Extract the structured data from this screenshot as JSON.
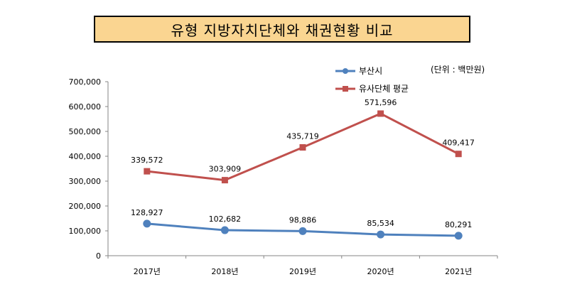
{
  "chart_data": {
    "type": "line",
    "title": "유형 지방자치단체와 채권현황 비교",
    "unit_note": "(단위 : 백만원)",
    "categories": [
      "2017년",
      "2018년",
      "2019년",
      "2020년",
      "2021년"
    ],
    "ylim": [
      0,
      700000
    ],
    "yticks": [
      "0",
      "100,000",
      "200,000",
      "300,000",
      "400,000",
      "500,000",
      "600,000",
      "700,000"
    ],
    "ytick_values": [
      0,
      100000,
      200000,
      300000,
      400000,
      500000,
      600000,
      700000
    ],
    "grid": false,
    "legend_position": "top-right",
    "series": [
      {
        "name": "부산시",
        "values": [
          128927,
          102682,
          98886,
          85534,
          80291
        ],
        "labels": [
          "128,927",
          "102,682",
          "98,886",
          "85,534",
          "80,291"
        ],
        "color": "#4f81bd",
        "marker": "circle"
      },
      {
        "name": "유사단체 평균",
        "values": [
          339572,
          303909,
          435719,
          571596,
          409417
        ],
        "labels": [
          "339,572",
          "303,909",
          "435,719",
          "571,596",
          "409,417"
        ],
        "color": "#c0504d",
        "marker": "square"
      }
    ]
  }
}
